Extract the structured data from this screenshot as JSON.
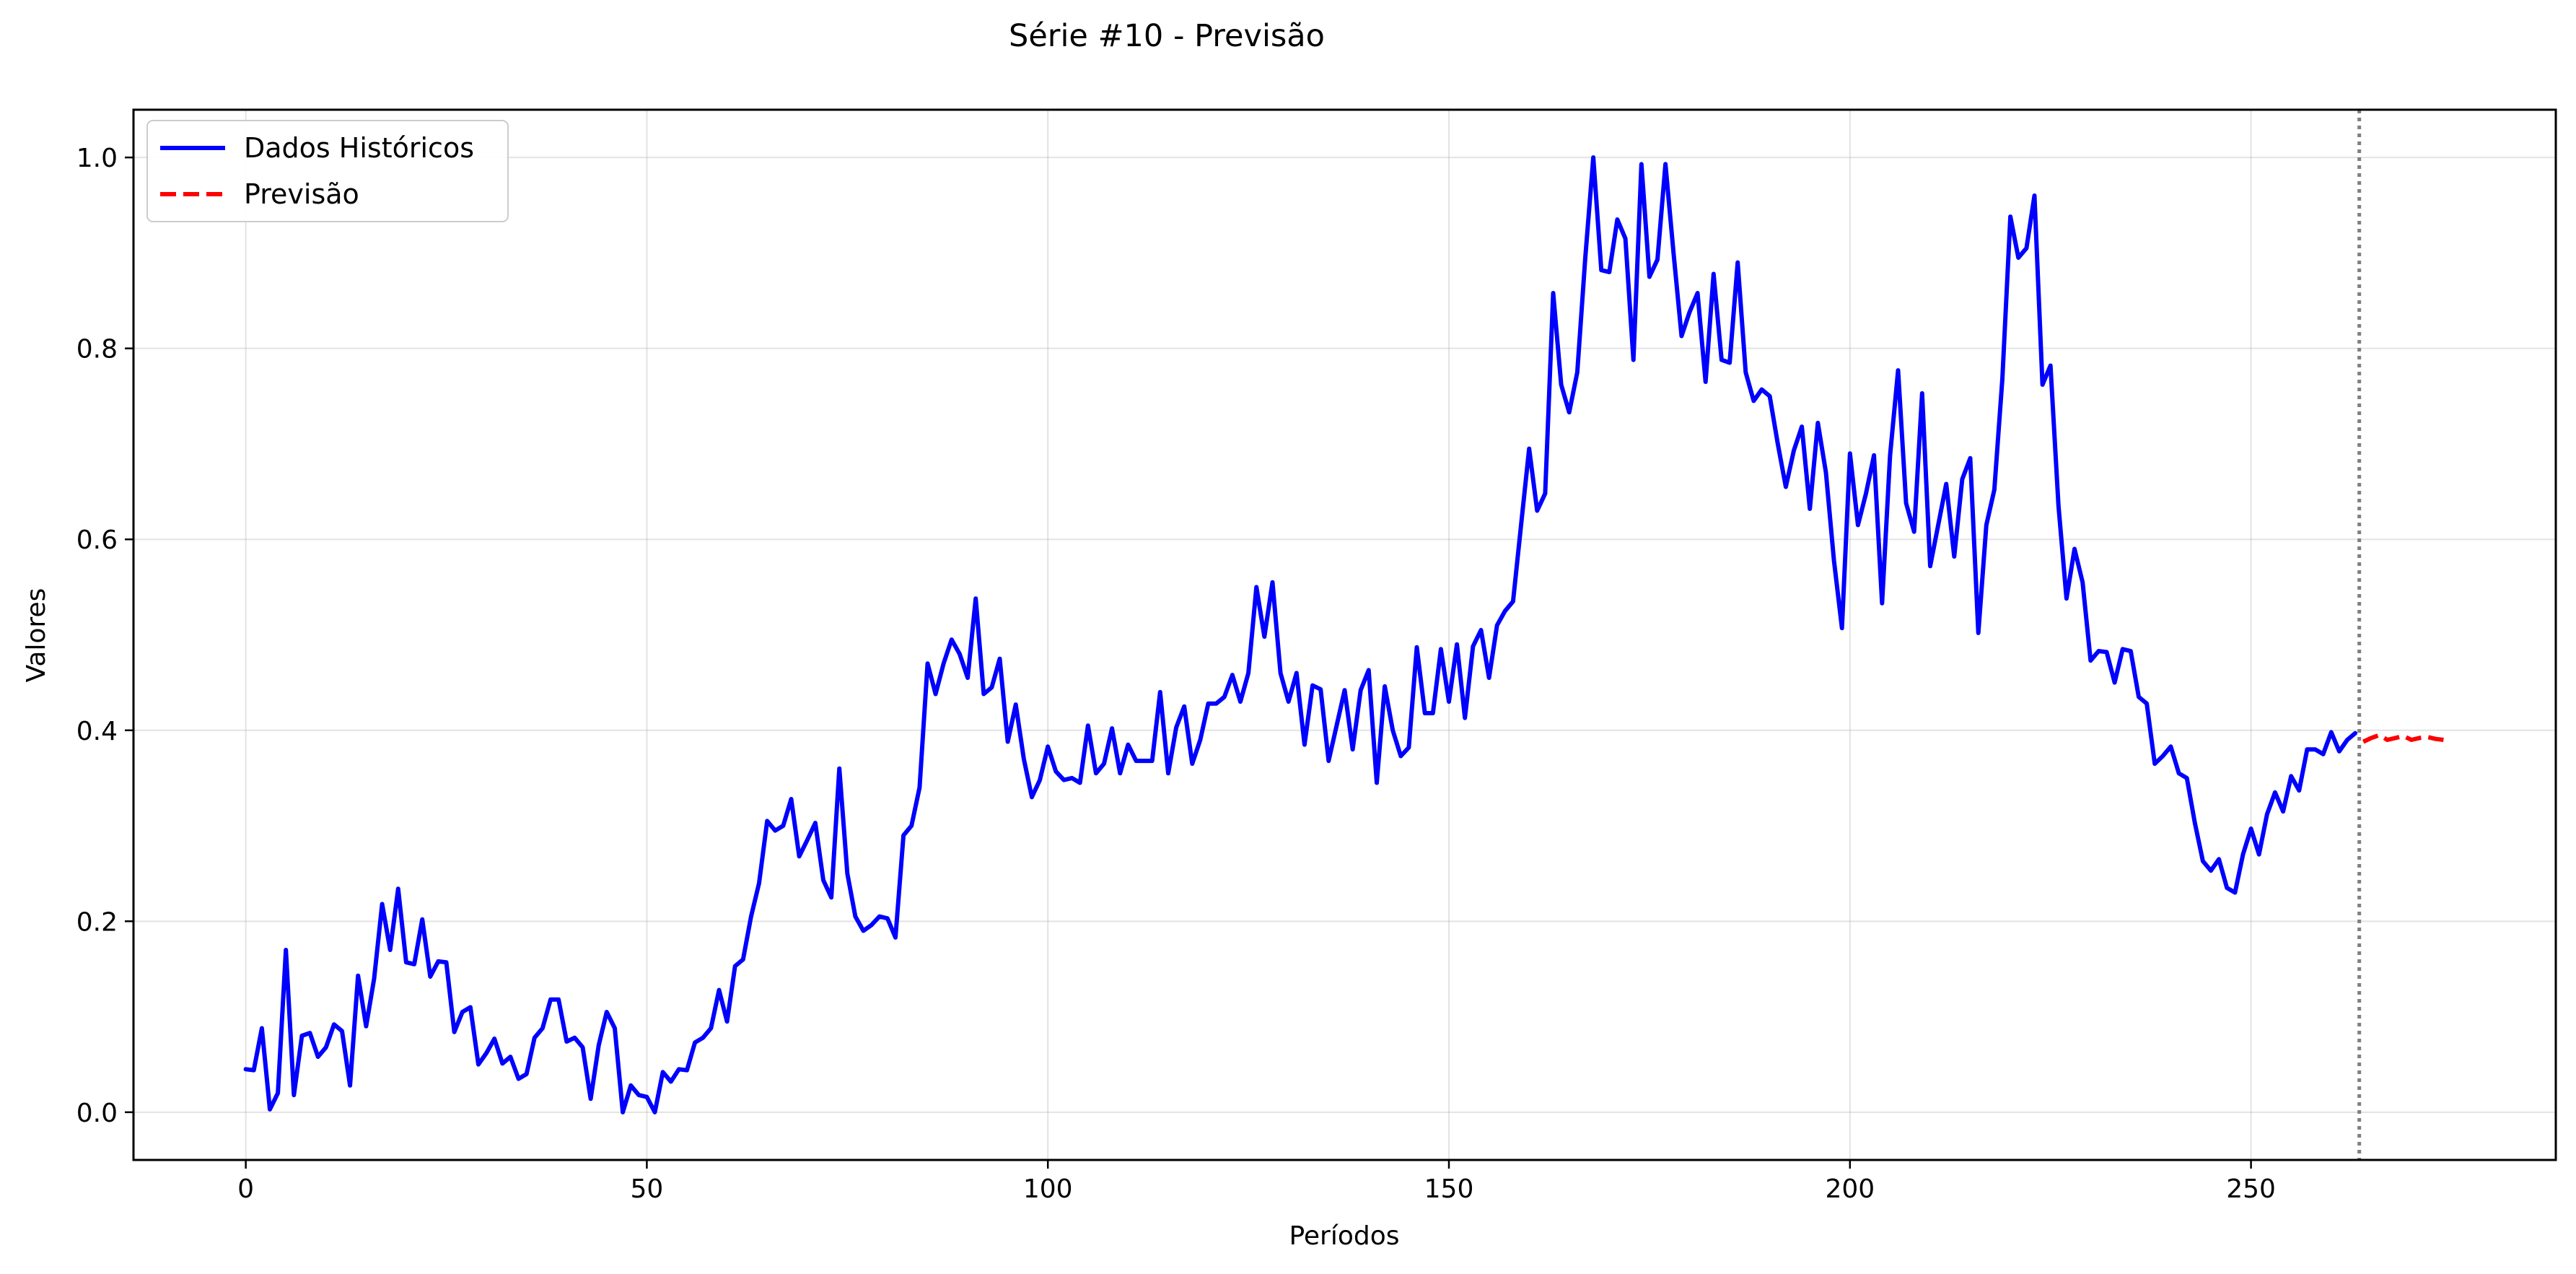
{
  "chart_data": {
    "type": "line",
    "title": "Série #10 - Previsão",
    "xlabel": "Períodos",
    "ylabel": "Valores",
    "xlim": [
      -14,
      288
    ],
    "ylim": [
      -0.05,
      1.05
    ],
    "x_ticks": [
      0,
      50,
      100,
      150,
      200,
      250
    ],
    "y_ticks": [
      0.0,
      0.2,
      0.4,
      0.6,
      0.8,
      1.0
    ],
    "x_tick_labels": [
      "0",
      "50",
      "100",
      "150",
      "200",
      "250"
    ],
    "y_tick_labels": [
      "0.0",
      "0.2",
      "0.4",
      "0.6",
      "0.8",
      "1.0"
    ],
    "grid": true,
    "legend_position": "top-left",
    "forecast_start_line": {
      "x": 263.5,
      "color": "#808080",
      "style": "dotted"
    },
    "series": [
      {
        "name": "Dados Históricos",
        "color": "#0000ff",
        "style": "solid",
        "x_start": 0,
        "values": [
          0.045,
          0.044,
          0.088,
          0.003,
          0.02,
          0.17,
          0.018,
          0.08,
          0.083,
          0.058,
          0.068,
          0.092,
          0.085,
          0.028,
          0.143,
          0.09,
          0.14,
          0.218,
          0.17,
          0.234,
          0.157,
          0.155,
          0.202,
          0.142,
          0.158,
          0.157,
          0.084,
          0.105,
          0.11,
          0.05,
          0.062,
          0.077,
          0.051,
          0.058,
          0.035,
          0.04,
          0.078,
          0.088,
          0.118,
          0.118,
          0.074,
          0.078,
          0.068,
          0.014,
          0.07,
          0.105,
          0.088,
          0.0,
          0.028,
          0.018,
          0.016,
          0.0,
          0.042,
          0.032,
          0.045,
          0.044,
          0.073,
          0.078,
          0.088,
          0.128,
          0.095,
          0.153,
          0.16,
          0.205,
          0.24,
          0.305,
          0.295,
          0.3,
          0.328,
          0.268,
          0.285,
          0.303,
          0.243,
          0.225,
          0.36,
          0.25,
          0.205,
          0.19,
          0.196,
          0.205,
          0.203,
          0.183,
          0.29,
          0.3,
          0.34,
          0.47,
          0.438,
          0.47,
          0.495,
          0.48,
          0.455,
          0.538,
          0.438,
          0.445,
          0.475,
          0.388,
          0.427,
          0.37,
          0.33,
          0.348,
          0.383,
          0.357,
          0.348,
          0.35,
          0.345,
          0.405,
          0.355,
          0.365,
          0.402,
          0.355,
          0.385,
          0.368,
          0.368,
          0.368,
          0.44,
          0.355,
          0.403,
          0.425,
          0.365,
          0.39,
          0.428,
          0.428,
          0.435,
          0.458,
          0.43,
          0.46,
          0.55,
          0.498,
          0.555,
          0.46,
          0.43,
          0.46,
          0.385,
          0.447,
          0.443,
          0.368,
          0.405,
          0.442,
          0.38,
          0.442,
          0.463,
          0.345,
          0.446,
          0.4,
          0.373,
          0.382,
          0.487,
          0.418,
          0.418,
          0.485,
          0.43,
          0.49,
          0.413,
          0.488,
          0.505,
          0.455,
          0.51,
          0.525,
          0.535,
          0.615,
          0.695,
          0.63,
          0.648,
          0.858,
          0.762,
          0.733,
          0.775,
          0.895,
          1.0,
          0.882,
          0.88,
          0.935,
          0.915,
          0.788,
          0.993,
          0.875,
          0.893,
          0.993,
          0.9,
          0.813,
          0.838,
          0.858,
          0.765,
          0.878,
          0.788,
          0.785,
          0.89,
          0.775,
          0.745,
          0.757,
          0.75,
          0.7,
          0.655,
          0.693,
          0.718,
          0.632,
          0.722,
          0.67,
          0.578,
          0.507,
          0.69,
          0.615,
          0.648,
          0.688,
          0.533,
          0.688,
          0.777,
          0.638,
          0.608,
          0.753,
          0.572,
          0.615,
          0.658,
          0.582,
          0.663,
          0.685,
          0.502,
          0.615,
          0.652,
          0.768,
          0.938,
          0.895,
          0.905,
          0.96,
          0.762,
          0.782,
          0.635,
          0.538,
          0.59,
          0.555,
          0.473,
          0.483,
          0.482,
          0.45,
          0.485,
          0.483,
          0.435,
          0.428,
          0.365,
          0.373,
          0.383,
          0.355,
          0.35,
          0.303,
          0.263,
          0.253,
          0.265,
          0.235,
          0.23,
          0.27,
          0.297,
          0.27,
          0.312,
          0.335,
          0.315,
          0.352,
          0.337,
          0.38,
          0.38,
          0.375,
          0.398,
          0.378,
          0.39,
          0.397
        ]
      },
      {
        "name": "Previsão",
        "color": "#ff0000",
        "style": "dashed",
        "x_start": 264,
        "values": [
          0.388,
          0.392,
          0.395,
          0.39,
          0.392,
          0.394,
          0.39,
          0.392,
          0.393,
          0.391,
          0.39
        ]
      }
    ]
  }
}
